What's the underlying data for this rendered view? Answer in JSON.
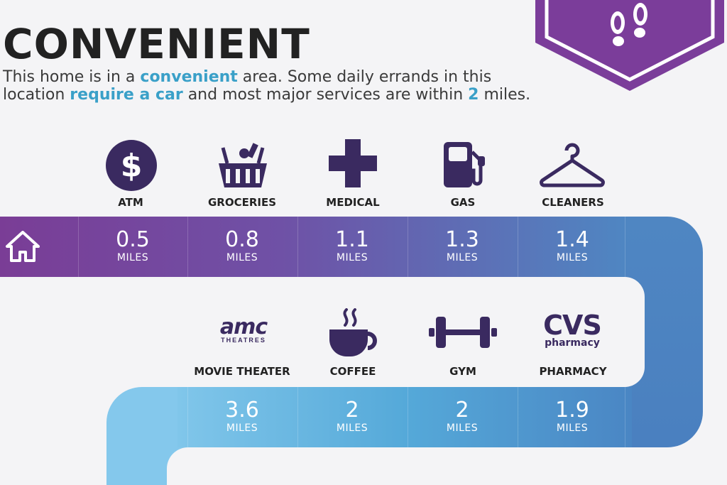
{
  "header": {
    "title": "CONVENIENT",
    "sub_1": "This home is in a ",
    "sub_2": "convenient",
    "sub_3": " area. Some daily errands in this location ",
    "sub_4": "require a car",
    "sub_5": " and most major services are within ",
    "sub_6": "2",
    "sub_7": " miles."
  },
  "badge": {
    "icon": "footprints-icon",
    "color": "#7b3d9a"
  },
  "home": {
    "icon": "house-icon"
  },
  "row1": [
    {
      "label": "ATM",
      "value": "0.5",
      "unit": "MILES",
      "icon": "dollar-icon"
    },
    {
      "label": "GROCERIES",
      "value": "0.8",
      "unit": "MILES",
      "icon": "basket-icon"
    },
    {
      "label": "MEDICAL",
      "value": "1.1",
      "unit": "MILES",
      "icon": "cross-icon"
    },
    {
      "label": "GAS",
      "value": "1.3",
      "unit": "MILES",
      "icon": "gas-pump-icon"
    },
    {
      "label": "CLEANERS",
      "value": "1.4",
      "unit": "MILES",
      "icon": "hanger-icon"
    }
  ],
  "row2": [
    {
      "label": "MOVIE THEATER",
      "value": "3.6",
      "unit": "MILES",
      "icon": "amc-logo"
    },
    {
      "label": "COFFEE",
      "value": "2",
      "unit": "MILES",
      "icon": "coffee-icon"
    },
    {
      "label": "GYM",
      "value": "2",
      "unit": "MILES",
      "icon": "dumbbell-icon"
    },
    {
      "label": "PHARMACY",
      "value": "1.9",
      "unit": "MILES",
      "icon": "cvs-logo"
    }
  ],
  "logos": {
    "amc_main": "amc",
    "amc_sub": "THEATRES",
    "cvs_main": "CVS",
    "cvs_sub": "pharmacy"
  },
  "colors": {
    "purple": "#7a3d96",
    "violet": "#6f51a6",
    "blue_mid": "#4f86c2",
    "blue_light": "#73bde6",
    "icon": "#3a2a60"
  }
}
